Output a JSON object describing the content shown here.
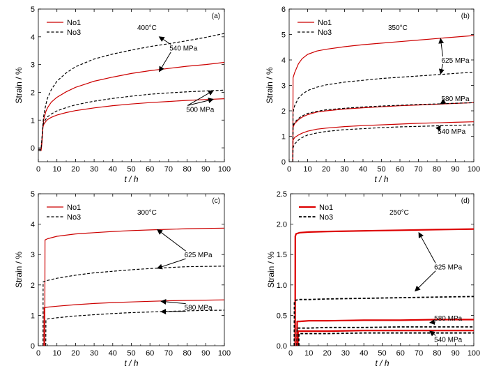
{
  "chart_data": [
    {
      "type": "line",
      "panel_label": "(a)",
      "annotation": "400°C",
      "xlabel": "t / h",
      "ylabel": "Strain / %",
      "xlim": [
        0,
        100
      ],
      "ylim": [
        -0.5,
        5
      ],
      "xticks": [
        "0",
        "10",
        "20",
        "30",
        "40",
        "50",
        "60",
        "70",
        "80",
        "90",
        "100"
      ],
      "yticks": [
        "0",
        "1",
        "2",
        "3",
        "4",
        "5"
      ],
      "legend": [
        "No1",
        "No3"
      ],
      "legend_position": "top-left",
      "stress_labels": [
        "540 MPa",
        "500 MPa"
      ],
      "series": [
        {
          "name": "No1",
          "label": "540 MPa",
          "style": "solid",
          "color": "#cc0000",
          "x": [
            0,
            1,
            1.5,
            2,
            2.5,
            3,
            4,
            5,
            7,
            10,
            15,
            20,
            30,
            40,
            50,
            60,
            70,
            80,
            90,
            100
          ],
          "y": [
            -0.1,
            -0.1,
            -0.1,
            0.2,
            0.8,
            1.05,
            1.3,
            1.45,
            1.65,
            1.82,
            2.02,
            2.18,
            2.4,
            2.55,
            2.68,
            2.78,
            2.86,
            2.94,
            3.0,
            3.08
          ]
        },
        {
          "name": "No3",
          "label": "540 MPa",
          "style": "dashed",
          "color": "#000000",
          "x": [
            0,
            1,
            1.5,
            2,
            2.5,
            3,
            4,
            5,
            7,
            10,
            15,
            20,
            30,
            40,
            50,
            60,
            70,
            80,
            90,
            100
          ],
          "y": [
            -0.1,
            -0.1,
            -0.1,
            0.3,
            0.9,
            1.2,
            1.55,
            1.8,
            2.1,
            2.4,
            2.7,
            2.92,
            3.2,
            3.38,
            3.52,
            3.65,
            3.75,
            3.86,
            3.98,
            4.12
          ]
        },
        {
          "name": "No1",
          "label": "500 MPa",
          "style": "solid",
          "color": "#cc0000",
          "x": [
            0,
            1,
            1.5,
            2,
            2.5,
            3,
            4,
            5,
            7,
            10,
            15,
            20,
            30,
            40,
            50,
            60,
            70,
            80,
            90,
            100
          ],
          "y": [
            -0.05,
            -0.05,
            -0.05,
            0.3,
            0.75,
            0.85,
            0.95,
            1.02,
            1.1,
            1.18,
            1.27,
            1.34,
            1.44,
            1.52,
            1.58,
            1.63,
            1.67,
            1.71,
            1.74,
            1.77
          ]
        },
        {
          "name": "No3",
          "label": "500 MPa",
          "style": "dashed",
          "color": "#000000",
          "x": [
            0,
            1,
            1.5,
            2,
            2.5,
            3,
            4,
            5,
            7,
            10,
            15,
            20,
            30,
            40,
            50,
            60,
            70,
            80,
            90,
            100
          ],
          "y": [
            -0.05,
            -0.05,
            -0.05,
            0.4,
            0.82,
            0.92,
            1.03,
            1.12,
            1.22,
            1.33,
            1.45,
            1.55,
            1.68,
            1.78,
            1.86,
            1.93,
            1.98,
            2.02,
            2.05,
            2.08
          ]
        }
      ],
      "arrows": [
        {
          "text": "540 MPa",
          "tx": 78,
          "ty": 3.6,
          "targets": [
            [
              65,
              4.0
            ],
            [
              65,
              2.75
            ]
          ]
        },
        {
          "text": "500 MPa",
          "tx": 87,
          "ty": 1.4,
          "targets": [
            [
              94,
              2.06
            ],
            [
              94,
              1.75
            ]
          ]
        }
      ]
    },
    {
      "type": "line",
      "panel_label": "(b)",
      "annotation": "350°C",
      "xlabel": "t / h",
      "ylabel": "Strain / %",
      "xlim": [
        0,
        100
      ],
      "ylim": [
        0,
        6
      ],
      "xticks": [
        "0",
        "10",
        "20",
        "30",
        "40",
        "50",
        "60",
        "70",
        "80",
        "90",
        "100"
      ],
      "yticks": [
        "0",
        "1",
        "2",
        "3",
        "4",
        "5",
        "6"
      ],
      "legend": [
        "No1",
        "No3"
      ],
      "legend_position": "top-left",
      "stress_labels": [
        "625 MPa",
        "580 MPa",
        "540 MPa"
      ],
      "series": [
        {
          "name": "No1",
          "label": "625 MPa",
          "style": "solid",
          "color": "#cc0000",
          "x": [
            2,
            2.1,
            3,
            5,
            7,
            10,
            15,
            20,
            30,
            40,
            50,
            60,
            70,
            80,
            90,
            100
          ],
          "y": [
            0,
            3.3,
            3.5,
            3.85,
            4.05,
            4.22,
            4.35,
            4.42,
            4.52,
            4.6,
            4.66,
            4.72,
            4.78,
            4.84,
            4.9,
            4.96
          ]
        },
        {
          "name": "No3",
          "label": "625 MPa",
          "style": "dashed",
          "color": "#000000",
          "x": [
            2,
            2.1,
            3,
            5,
            7,
            10,
            15,
            20,
            30,
            40,
            50,
            60,
            70,
            80,
            90,
            100
          ],
          "y": [
            0,
            1.95,
            2.2,
            2.5,
            2.65,
            2.8,
            2.93,
            3.02,
            3.13,
            3.2,
            3.27,
            3.32,
            3.37,
            3.42,
            3.47,
            3.52
          ]
        },
        {
          "name": "No1",
          "label": "580 MPa",
          "style": "solid",
          "color": "#cc0000",
          "x": [
            2,
            2.1,
            3,
            5,
            7,
            10,
            15,
            20,
            30,
            40,
            50,
            60,
            70,
            80,
            90,
            100
          ],
          "y": [
            0,
            1.35,
            1.5,
            1.65,
            1.75,
            1.85,
            1.95,
            2.0,
            2.07,
            2.12,
            2.16,
            2.2,
            2.23,
            2.26,
            2.29,
            2.32
          ]
        },
        {
          "name": "No3",
          "label": "580 MPa",
          "style": "dashed",
          "color": "#000000",
          "x": [
            2,
            2.1,
            3,
            5,
            7,
            10,
            15,
            20,
            30,
            40,
            50,
            60,
            70,
            80,
            90,
            100
          ],
          "y": [
            0,
            1.4,
            1.55,
            1.7,
            1.8,
            1.9,
            1.98,
            2.04,
            2.1,
            2.15,
            2.19,
            2.22,
            2.25,
            2.27,
            2.3,
            2.32
          ]
        },
        {
          "name": "No1",
          "label": "540 MPa",
          "style": "solid",
          "color": "#cc0000",
          "x": [
            2,
            2.1,
            3,
            5,
            7,
            10,
            15,
            20,
            30,
            40,
            50,
            60,
            70,
            80,
            90,
            100
          ],
          "y": [
            0,
            0.85,
            0.95,
            1.05,
            1.12,
            1.2,
            1.28,
            1.32,
            1.38,
            1.42,
            1.45,
            1.48,
            1.51,
            1.53,
            1.55,
            1.57
          ]
        },
        {
          "name": "No3",
          "label": "540 MPa",
          "style": "dashed",
          "color": "#000000",
          "x": [
            2,
            2.1,
            3,
            5,
            7,
            10,
            15,
            20,
            30,
            40,
            50,
            60,
            70,
            80,
            90,
            100
          ],
          "y": [
            0,
            0.55,
            0.7,
            0.85,
            0.95,
            1.05,
            1.13,
            1.19,
            1.26,
            1.3,
            1.34,
            1.37,
            1.39,
            1.41,
            1.43,
            1.45
          ]
        }
      ],
      "arrows": [
        {
          "text": "625 MPa",
          "tx": 90,
          "ty": 4.0,
          "targets": [
            [
              82,
              4.84
            ],
            [
              82,
              3.45
            ]
          ]
        },
        {
          "text": "580 MPa",
          "tx": 90,
          "ty": 2.5,
          "targets": [
            [
              82,
              2.28
            ]
          ]
        },
        {
          "text": "540 MPa",
          "tx": 88,
          "ty": 1.2,
          "targets": [
            [
              82,
              1.42
            ]
          ]
        }
      ]
    },
    {
      "type": "line",
      "panel_label": "(c)",
      "annotation": "300°C",
      "xlabel": "t / h",
      "ylabel": "Strain / %",
      "xlim": [
        0,
        100
      ],
      "ylim": [
        0,
        5
      ],
      "xticks": [
        "0",
        "10",
        "20",
        "30",
        "40",
        "50",
        "60",
        "70",
        "80",
        "90",
        "100"
      ],
      "yticks": [
        "0",
        "1",
        "2",
        "3",
        "4",
        "5"
      ],
      "legend": [
        "No1",
        "No3"
      ],
      "legend_position": "top-left",
      "stress_labels": [
        "625 MPa",
        "580 MPa"
      ],
      "series": [
        {
          "name": "No1",
          "label": "625 MPa",
          "style": "solid",
          "color": "#cc0000",
          "x": [
            3.5,
            3.6,
            5,
            10,
            20,
            30,
            40,
            50,
            60,
            70,
            80,
            90,
            100
          ],
          "y": [
            0,
            3.48,
            3.52,
            3.6,
            3.68,
            3.72,
            3.76,
            3.79,
            3.81,
            3.83,
            3.85,
            3.86,
            3.87
          ]
        },
        {
          "name": "No3",
          "label": "625 MPa",
          "style": "dashed",
          "color": "#000000",
          "x": [
            2.5,
            2.6,
            5,
            10,
            20,
            30,
            40,
            50,
            60,
            70,
            80,
            90,
            100
          ],
          "y": [
            0,
            2.1,
            2.15,
            2.22,
            2.32,
            2.4,
            2.45,
            2.5,
            2.54,
            2.57,
            2.6,
            2.61,
            2.62
          ]
        },
        {
          "name": "No1",
          "label": "580 MPa",
          "style": "solid",
          "color": "#cc0000",
          "x": [
            3,
            3.1,
            5,
            10,
            20,
            30,
            40,
            50,
            60,
            70,
            80,
            90,
            100
          ],
          "y": [
            0,
            1.25,
            1.27,
            1.3,
            1.35,
            1.39,
            1.42,
            1.44,
            1.46,
            1.48,
            1.49,
            1.5,
            1.51
          ]
        },
        {
          "name": "No3",
          "label": "580 MPa",
          "style": "dashed",
          "color": "#000000",
          "x": [
            4,
            4.1,
            5,
            10,
            20,
            30,
            40,
            50,
            60,
            70,
            80,
            90,
            100
          ],
          "y": [
            0,
            0.85,
            0.88,
            0.92,
            0.98,
            1.02,
            1.06,
            1.09,
            1.11,
            1.13,
            1.15,
            1.16,
            1.17
          ]
        }
      ],
      "arrows": [
        {
          "text": "625 MPa",
          "tx": 86,
          "ty": 3.0,
          "targets": [
            [
              64,
              3.82
            ],
            [
              64,
              2.55
            ]
          ]
        },
        {
          "text": "580 MPa",
          "tx": 86,
          "ty": 1.27,
          "targets": [
            [
              66,
              1.46
            ],
            [
              66,
              1.12
            ]
          ]
        }
      ]
    },
    {
      "type": "line",
      "panel_label": "(d)",
      "annotation": "250°C",
      "xlabel": "t / h",
      "ylabel": "Strain / %",
      "xlim": [
        0,
        100
      ],
      "ylim": [
        0,
        2.5
      ],
      "xticks": [
        "0",
        "10",
        "20",
        "30",
        "40",
        "50",
        "60",
        "70",
        "80",
        "90",
        "100"
      ],
      "yticks": [
        "0.0",
        "0.5",
        "1.0",
        "1.5",
        "2.0",
        "2.5"
      ],
      "legend": [
        "No1",
        "No3"
      ],
      "legend_position": "top-left",
      "stress_labels": [
        "625 MPa",
        "580 MPa",
        "540 MPa"
      ],
      "series": [
        {
          "name": "No1",
          "label": "625 MPa",
          "style": "solid",
          "color": "#dd0000",
          "width": 2.2,
          "x": [
            2.5,
            2.6,
            3,
            5,
            10,
            20,
            40,
            60,
            80,
            100
          ],
          "y": [
            0,
            1.8,
            1.84,
            1.86,
            1.87,
            1.88,
            1.89,
            1.9,
            1.91,
            1.92
          ]
        },
        {
          "name": "No3",
          "label": "625 MPa",
          "style": "dashed",
          "color": "#000000",
          "width": 1.8,
          "x": [
            2.0,
            2.1,
            3,
            5,
            10,
            20,
            40,
            60,
            80,
            100
          ],
          "y": [
            0,
            0.73,
            0.75,
            0.76,
            0.76,
            0.77,
            0.78,
            0.79,
            0.8,
            0.81
          ]
        },
        {
          "name": "No1",
          "label": "580 MPa",
          "style": "solid",
          "color": "#dd0000",
          "width": 2.2,
          "x": [
            3.5,
            3.6,
            5,
            10,
            20,
            40,
            60,
            80,
            100
          ],
          "y": [
            0,
            0.4,
            0.4,
            0.41,
            0.41,
            0.42,
            0.42,
            0.43,
            0.43
          ]
        },
        {
          "name": "No3",
          "label": "580 MPa",
          "style": "dashed",
          "color": "#000000",
          "width": 1.8,
          "x": [
            3.5,
            3.6,
            5,
            10,
            20,
            40,
            60,
            80,
            100
          ],
          "y": [
            0,
            0.29,
            0.29,
            0.29,
            0.3,
            0.3,
            0.31,
            0.31,
            0.31
          ]
        },
        {
          "name": "No1",
          "label": "540 MPa",
          "style": "solid",
          "color": "#dd0000",
          "width": 2.2,
          "x": [
            4,
            4.1,
            5,
            10,
            20,
            40,
            60,
            80,
            100
          ],
          "y": [
            0,
            0.24,
            0.24,
            0.24,
            0.24,
            0.25,
            0.25,
            0.25,
            0.25
          ]
        },
        {
          "name": "No3",
          "label": "540 MPa",
          "style": "dashed",
          "color": "#000000",
          "width": 1.8,
          "x": [
            4.5,
            4.6,
            5,
            10,
            20,
            40,
            60,
            80,
            100
          ],
          "y": [
            0,
            0.2,
            0.2,
            0.2,
            0.2,
            0.21,
            0.21,
            0.21,
            0.21
          ]
        }
      ],
      "arrows": [
        {
          "text": "625 MPa",
          "tx": 86,
          "ty": 1.3,
          "targets": [
            [
              70,
              1.86
            ],
            [
              68,
              0.9
            ]
          ]
        },
        {
          "text": "580 MPa",
          "tx": 86,
          "ty": 0.46,
          "targets": [
            [
              76,
              0.38
            ]
          ]
        },
        {
          "text": "540 MPa",
          "tx": 86,
          "ty": 0.11,
          "targets": [
            [
              76,
              0.24
            ]
          ]
        }
      ]
    }
  ]
}
